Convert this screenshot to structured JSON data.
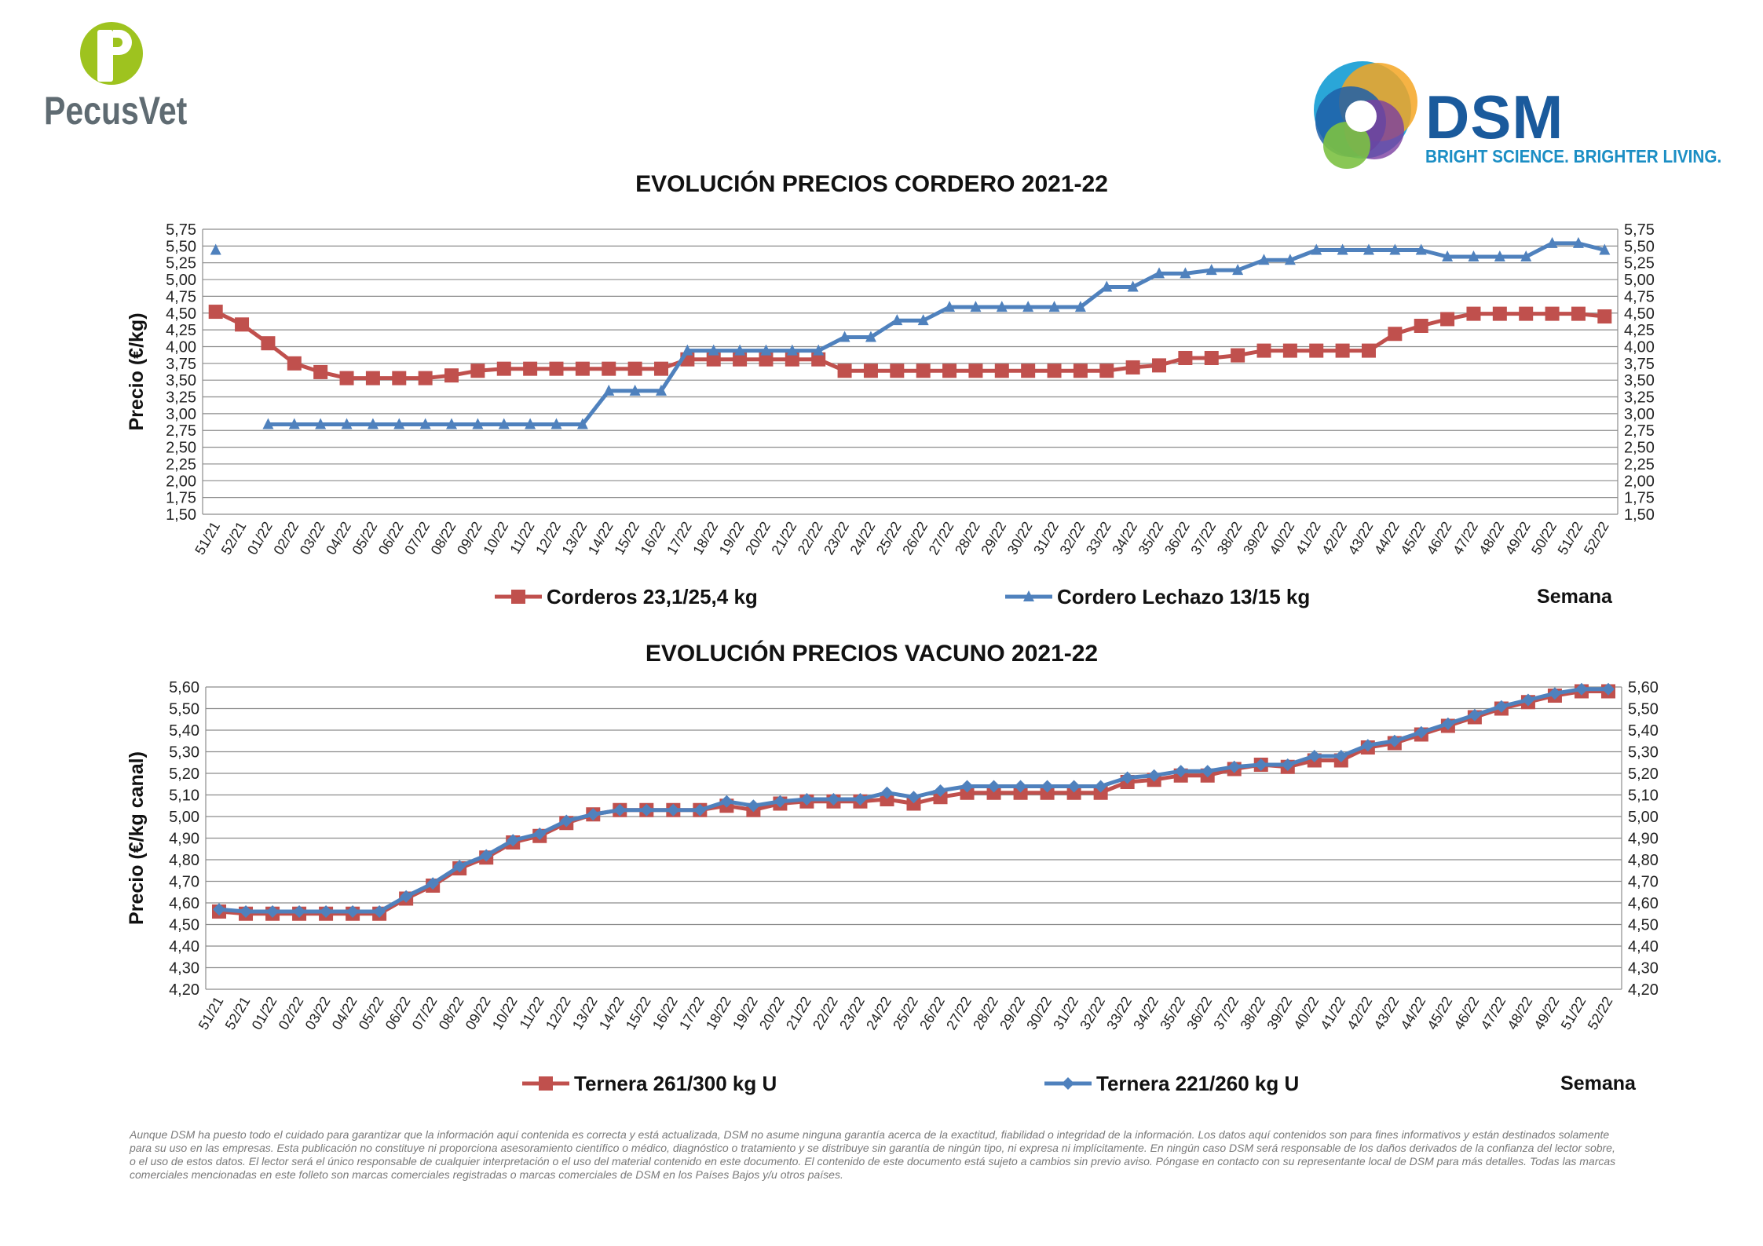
{
  "header": {
    "left_brand": "PecusVet",
    "right_brand": "DSM",
    "right_tagline": "BRIGHT SCIENCE. BRIGHTER LIVING."
  },
  "disclaimer": "Aunque DSM ha puesto todo el cuidado para garantizar que la información aquí contenida es correcta y está actualizada, DSM no asume ninguna garantía acerca de la exactitud, fiabilidad o integridad de la información. Los datos aquí contenidos son para fines informativos y están destinados solamente para su uso en las empresas. Esta publicación no constituye ni proporciona asesoramiento científico o médico, diagnóstico o tratamiento y se distribuye sin garantía de ningún tipo, ni expresa ni implícitamente. En ningún caso DSM será responsable de los daños derivados de la confianza del lector sobre, o el uso de estos datos. El lector será el único responsable de cualquier interpretación o el uso del material contenido en este documento. El contenido de este documento está sujeto a cambios sin previo aviso. Póngase en contacto con su representante local de DSM para más detalles. Todas las marcas comerciales mencionadas en este folleto son marcas comerciales registradas o marcas comerciales de DSM en los Países Bajos y/u otros países.",
  "chart_data": [
    {
      "type": "line",
      "title": "EVOLUCIÓN PRECIOS CORDERO 2021-22",
      "ylabel": "Precio (€/kg)",
      "xlabel": "Semana",
      "ylim": [
        1.5,
        5.75
      ],
      "ytick_step": 0.25,
      "grid": true,
      "legend_position": "bottom",
      "categories": [
        "51/21",
        "52/21",
        "01/22",
        "02/22",
        "03/22",
        "04/22",
        "05/22",
        "06/22",
        "07/22",
        "08/22",
        "09/22",
        "10/22",
        "11/22",
        "12/22",
        "13/22",
        "14/22",
        "15/22",
        "16/22",
        "17/22",
        "18/22",
        "19/22",
        "20/22",
        "21/22",
        "22/22",
        "23/22",
        "24/22",
        "25/22",
        "26/22",
        "27/22",
        "28/22",
        "29/22",
        "30/22",
        "31/22",
        "32/22",
        "33/22",
        "34/22",
        "35/22",
        "36/22",
        "37/22",
        "38/22",
        "39/22",
        "40/22",
        "41/22",
        "42/22",
        "43/22",
        "44/22",
        "45/22",
        "46/22",
        "47/22",
        "48/22",
        "49/22",
        "50/22",
        "51/22",
        "52/22"
      ],
      "series": [
        {
          "name": "Corderos 23,1/25,4 kg",
          "color": "#c0504d",
          "marker": "square",
          "connect_first": true,
          "values": [
            4.52,
            4.33,
            4.05,
            3.75,
            3.62,
            3.53,
            3.53,
            3.53,
            3.53,
            3.57,
            3.64,
            3.67,
            3.67,
            3.67,
            3.67,
            3.67,
            3.67,
            3.67,
            3.81,
            3.81,
            3.81,
            3.81,
            3.81,
            3.81,
            3.64,
            3.64,
            3.64,
            3.64,
            3.64,
            3.64,
            3.64,
            3.64,
            3.64,
            3.64,
            3.64,
            3.69,
            3.72,
            3.83,
            3.83,
            3.87,
            3.94,
            3.94,
            3.94,
            3.94,
            3.94,
            4.19,
            4.31,
            4.41,
            4.49,
            4.49,
            4.49,
            4.49,
            4.49,
            4.45
          ]
        },
        {
          "name": "Cordero Lechazo 13/15 kg",
          "color": "#4f81bd",
          "marker": "triangle",
          "connect_first": false,
          "values": [
            5.44,
            null,
            2.84,
            2.84,
            2.84,
            2.84,
            2.84,
            2.84,
            2.84,
            2.84,
            2.84,
            2.84,
            2.84,
            2.84,
            2.84,
            3.34,
            3.34,
            3.34,
            3.94,
            3.94,
            3.94,
            3.94,
            3.94,
            3.94,
            4.14,
            4.14,
            4.39,
            4.39,
            4.59,
            4.59,
            4.59,
            4.59,
            4.59,
            4.59,
            4.89,
            4.89,
            5.09,
            5.09,
            5.14,
            5.14,
            5.29,
            5.29,
            5.44,
            5.44,
            5.44,
            5.44,
            5.44,
            5.34,
            5.34,
            5.34,
            5.34,
            5.54,
            5.54,
            5.44
          ]
        }
      ]
    },
    {
      "type": "line",
      "title": "EVOLUCIÓN PRECIOS VACUNO 2021-22",
      "ylabel": "Precio (€/kg canal)",
      "xlabel": "Semana",
      "ylim": [
        4.2,
        5.6
      ],
      "ytick_step": 0.1,
      "grid": true,
      "legend_position": "bottom",
      "categories": [
        "51/21",
        "52/21",
        "01/22",
        "02/22",
        "03/22",
        "04/22",
        "05/22",
        "06/22",
        "07/22",
        "08/22",
        "09/22",
        "10/22",
        "11/22",
        "12/22",
        "13/22",
        "14/22",
        "15/22",
        "16/22",
        "17/22",
        "18/22",
        "19/22",
        "20/22",
        "21/22",
        "22/22",
        "23/22",
        "24/22",
        "25/22",
        "26/22",
        "27/22",
        "28/22",
        "29/22",
        "30/22",
        "31/22",
        "32/22",
        "33/22",
        "34/22",
        "35/22",
        "36/22",
        "37/22",
        "38/22",
        "39/22",
        "40/22",
        "41/22",
        "42/22",
        "43/22",
        "44/22",
        "45/22",
        "46/22",
        "47/22",
        "48/22",
        "49/22",
        "51/22",
        "52/22"
      ],
      "series": [
        {
          "name": "Ternera 261/300 kg U",
          "color": "#c0504d",
          "marker": "square",
          "connect_first": true,
          "values": [
            4.56,
            4.55,
            4.55,
            4.55,
            4.55,
            4.55,
            4.55,
            4.62,
            4.68,
            4.76,
            4.81,
            4.88,
            4.91,
            4.97,
            5.01,
            5.03,
            5.03,
            5.03,
            5.03,
            5.05,
            5.03,
            5.06,
            5.07,
            5.07,
            5.07,
            5.08,
            5.06,
            5.09,
            5.11,
            5.11,
            5.11,
            5.11,
            5.11,
            5.11,
            5.16,
            5.17,
            5.19,
            5.19,
            5.22,
            5.24,
            5.23,
            5.26,
            5.26,
            5.32,
            5.34,
            5.38,
            5.42,
            5.46,
            5.5,
            5.53,
            5.56,
            5.58,
            5.58
          ]
        },
        {
          "name": "Ternera 221/260 kg U",
          "color": "#4f81bd",
          "marker": "diamond",
          "connect_first": true,
          "values": [
            4.57,
            4.56,
            4.56,
            4.56,
            4.56,
            4.56,
            4.56,
            4.63,
            4.69,
            4.77,
            4.82,
            4.89,
            4.92,
            4.98,
            5.01,
            5.03,
            5.03,
            5.03,
            5.03,
            5.07,
            5.05,
            5.07,
            5.08,
            5.08,
            5.08,
            5.11,
            5.09,
            5.12,
            5.14,
            5.14,
            5.14,
            5.14,
            5.14,
            5.14,
            5.18,
            5.19,
            5.21,
            5.21,
            5.23,
            5.24,
            5.24,
            5.28,
            5.28,
            5.33,
            5.35,
            5.39,
            5.43,
            5.47,
            5.51,
            5.54,
            5.57,
            5.59,
            5.59
          ]
        }
      ]
    }
  ]
}
